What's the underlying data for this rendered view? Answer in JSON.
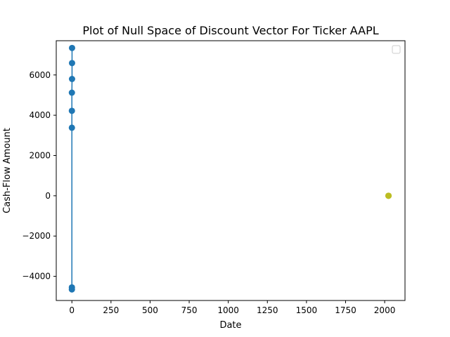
{
  "chart_data": {
    "type": "line",
    "title": "Plot of Null Space of Discount Vector For Ticker AAPL",
    "xlabel": "Date",
    "ylabel": "Cash-Flow Amount",
    "xlim": [
      -100,
      2130
    ],
    "ylim": [
      -5200,
      7700
    ],
    "xticks": [
      0,
      250,
      500,
      750,
      1000,
      1250,
      1500,
      1750,
      2000
    ],
    "xtick_labels": [
      "0",
      "250",
      "500",
      "750",
      "1000",
      "1250",
      "1500",
      "1750",
      "2000"
    ],
    "yticks": [
      -4000,
      -2000,
      0,
      2000,
      4000,
      6000
    ],
    "ytick_labels": [
      "−4000",
      "−2000",
      "0",
      "2000",
      "4000",
      "6000"
    ],
    "grid": false,
    "legend": {
      "placement": "upper right",
      "entries": []
    },
    "series": [
      {
        "color": "#1f77b4",
        "style": "line-with-markers",
        "points": [
          {
            "x": 0,
            "y": -4650
          },
          {
            "x": 0,
            "y": -4550
          },
          {
            "x": 0,
            "y": 3380
          },
          {
            "x": 0,
            "y": 4220
          },
          {
            "x": 0,
            "y": 5120
          },
          {
            "x": 1,
            "y": 5800
          },
          {
            "x": 1,
            "y": 6590
          },
          {
            "x": 1,
            "y": 7340
          }
        ]
      },
      {
        "color": "#bcbd22",
        "style": "markers",
        "points": [
          {
            "x": 2024,
            "y": 0
          },
          {
            "x": 2025,
            "y": 0
          }
        ]
      }
    ]
  }
}
